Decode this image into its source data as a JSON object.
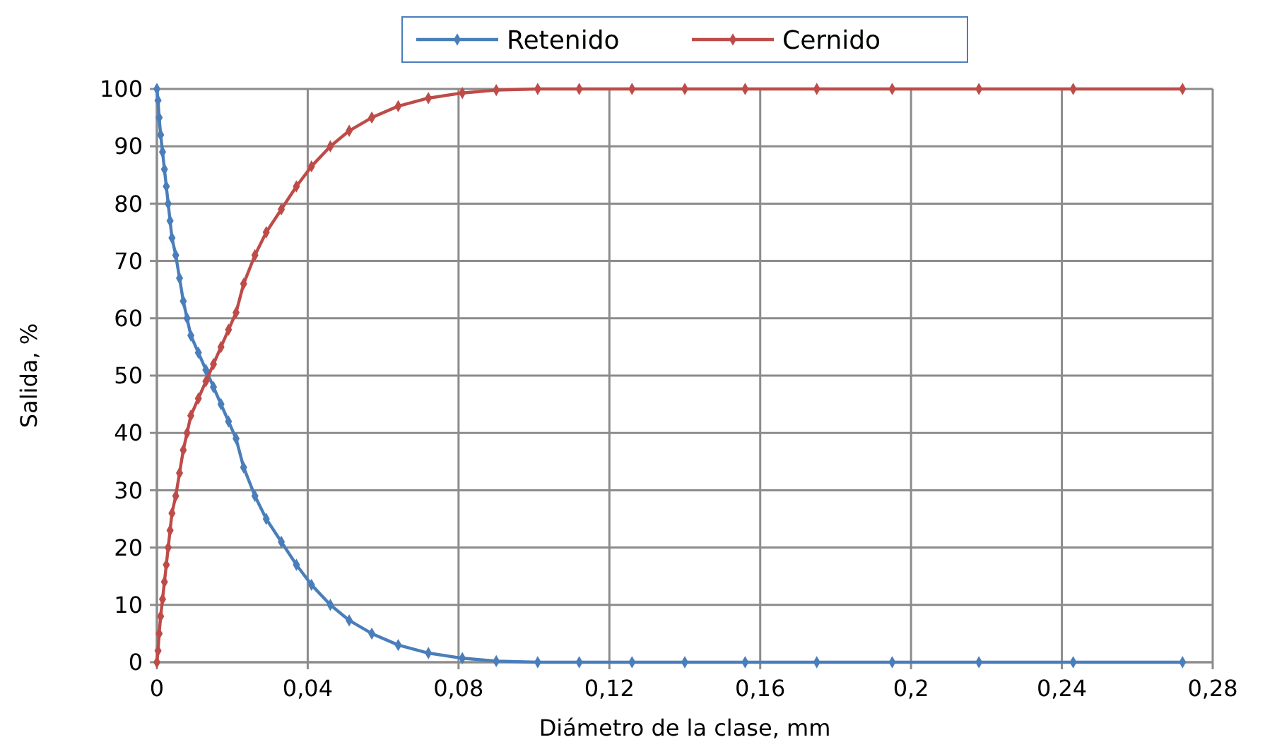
{
  "chart_data": {
    "type": "line",
    "xlabel": "Diámetro  de la clase, mm",
    "ylabel": "Salida, %",
    "x": [
      0,
      0.0003,
      0.0006,
      0.001,
      0.0015,
      0.002,
      0.0025,
      0.003,
      0.0035,
      0.004,
      0.005,
      0.006,
      0.007,
      0.008,
      0.009,
      0.011,
      0.013,
      0.015,
      0.017,
      0.019,
      0.021,
      0.023,
      0.026,
      0.029,
      0.033,
      0.037,
      0.041,
      0.046,
      0.051,
      0.057,
      0.064,
      0.072,
      0.081,
      0.09,
      0.101,
      0.112,
      0.126,
      0.14,
      0.156,
      0.175,
      0.195,
      0.218,
      0.243,
      0.272
    ],
    "series": [
      {
        "name": "Retenido",
        "color": "#4a7ebb",
        "values": [
          100,
          98,
          95,
          92,
          89,
          86,
          83,
          80,
          77,
          74,
          71,
          67,
          63,
          60,
          57,
          54,
          51,
          48,
          45,
          42,
          39,
          34,
          29,
          25,
          21,
          17,
          13.5,
          10,
          7.3,
          5,
          3,
          1.6,
          0.7,
          0.2,
          0,
          0,
          0,
          0,
          0,
          0,
          0,
          0,
          0,
          0
        ]
      },
      {
        "name": "Cernido",
        "color": "#be4b48",
        "values": [
          0,
          2,
          5,
          8,
          11,
          14,
          17,
          20,
          23,
          26,
          29,
          33,
          37,
          40,
          43,
          46,
          49,
          52,
          55,
          58,
          61,
          66,
          71,
          75,
          79,
          83,
          86.5,
          90,
          92.7,
          95,
          97,
          98.4,
          99.3,
          99.8,
          100,
          100,
          100,
          100,
          100,
          100,
          100,
          100,
          100,
          100
        ]
      }
    ],
    "xlim": [
      0,
      0.28
    ],
    "xticks": [
      0,
      {
        "value": 0.04,
        "label": "0,04"
      },
      {
        "value": 0.08,
        "label": "0,08"
      },
      {
        "value": 0.12,
        "label": "0,12"
      },
      {
        "value": 0.16,
        "label": "0,16"
      },
      {
        "value": 0.2,
        "label": "0,2"
      },
      {
        "value": 0.24,
        "label": "0,24"
      },
      {
        "value": 0.28,
        "label": "0,28"
      }
    ],
    "ylim": [
      0,
      100
    ],
    "yticks": [
      0,
      10,
      20,
      30,
      40,
      50,
      60,
      70,
      80,
      90,
      100
    ],
    "grid": true,
    "legend": "top",
    "marker": "diamond",
    "line_style": "solid"
  }
}
